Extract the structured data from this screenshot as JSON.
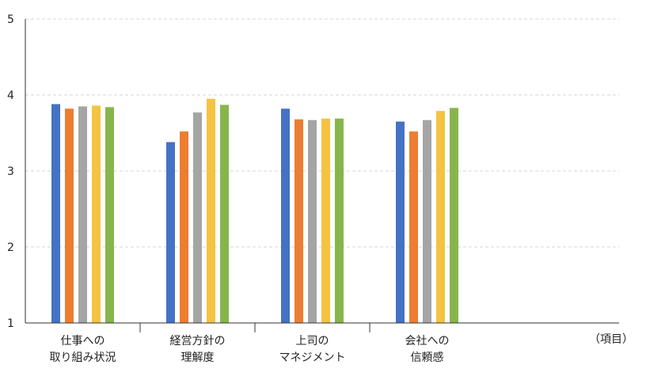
{
  "chart_data": {
    "type": "bar",
    "categories": [
      [
        "仕事への",
        "取り組み状況"
      ],
      [
        "経営方針の",
        "理解度"
      ],
      [
        "上司の",
        "マネジメント"
      ],
      [
        "会社への",
        "信頼感"
      ],
      [
        "",
        ""
      ]
    ],
    "series": [
      {
        "color": "#4472C4",
        "values": [
          3.88,
          3.38,
          3.82,
          3.65,
          null
        ]
      },
      {
        "color": "#ED7D31",
        "values": [
          3.82,
          3.52,
          3.68,
          3.52,
          null
        ]
      },
      {
        "color": "#A5A5A5",
        "values": [
          3.85,
          3.77,
          3.67,
          3.67,
          null
        ]
      },
      {
        "color": "#F5C342",
        "values": [
          3.86,
          3.95,
          3.69,
          3.79,
          null
        ]
      },
      {
        "color": "#86B64B",
        "values": [
          3.84,
          3.87,
          3.69,
          3.83,
          null
        ]
      }
    ],
    "y_ticks": [
      "1",
      "2",
      "3",
      "4",
      "5"
    ],
    "ylim": [
      1,
      5
    ],
    "x_unit_label": "（項目）",
    "grid": true
  }
}
